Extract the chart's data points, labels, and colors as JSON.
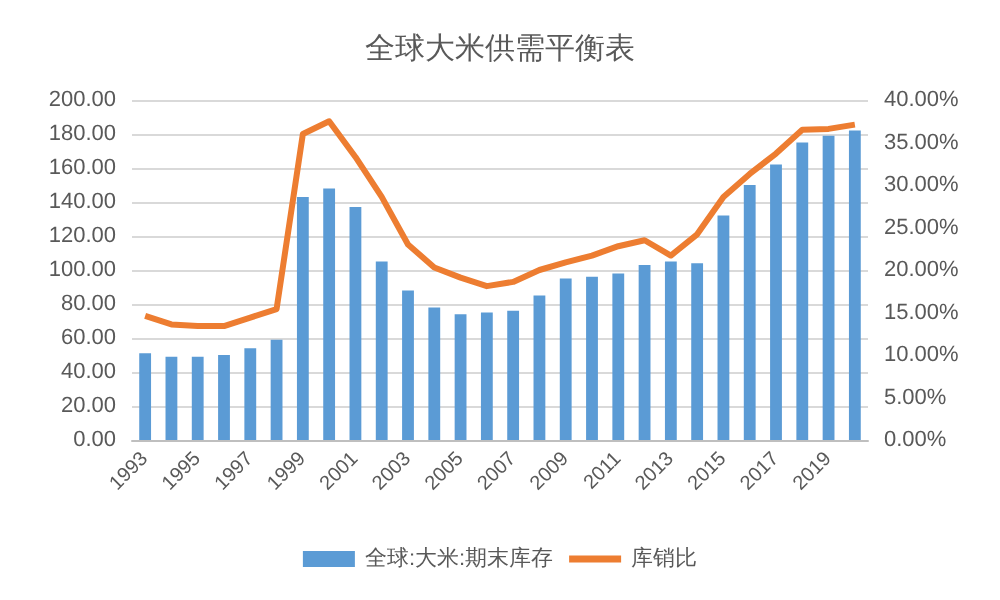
{
  "chart_data": {
    "type": "bar",
    "title": "全球大米供需平衡表",
    "categories": [
      "1993",
      null,
      "1995",
      null,
      "1997",
      null,
      "1999",
      null,
      "2001",
      null,
      "2003",
      null,
      "2005",
      null,
      "2007",
      null,
      "2009",
      null,
      "2011",
      null,
      "2013",
      null,
      "2015",
      null,
      "2017",
      null,
      "2019",
      null
    ],
    "series": [
      {
        "name": "全球:大米:期末库存",
        "color": "#5b9bd5",
        "values": [
          51,
          49,
          49,
          50,
          54,
          59,
          143,
          148,
          137,
          105,
          88,
          78,
          74,
          75,
          76,
          85,
          95,
          96,
          98,
          103,
          105,
          104,
          132,
          150,
          162,
          175,
          179,
          182
        ]
      },
      {
        "name": "库销比",
        "type": "line",
        "axis": "y2",
        "color": "#ed7d31",
        "values": [
          14.6,
          13.6,
          13.4,
          13.4,
          14.4,
          15.4,
          36,
          37.5,
          33.3,
          28.6,
          23,
          20.3,
          19.1,
          18.1,
          18.6,
          20,
          20.9,
          21.7,
          22.8,
          23.5,
          21.7,
          24.2,
          28.6,
          31.3,
          33.7,
          36.5,
          36.6,
          37.1
        ]
      }
    ],
    "ylim": [
      0,
      200
    ],
    "yticks": [
      {
        "value": 0,
        "label": "0.00"
      },
      {
        "value": 20,
        "label": "20.00"
      },
      {
        "value": 40,
        "label": "40.00"
      },
      {
        "value": 60,
        "label": "60.00"
      },
      {
        "value": 80,
        "label": "80.00"
      },
      {
        "value": 100,
        "label": "100.00"
      },
      {
        "value": 120,
        "label": "120.00"
      },
      {
        "value": 140,
        "label": "140.00"
      },
      {
        "value": 160,
        "label": "160.00"
      },
      {
        "value": 180,
        "label": "180.00"
      },
      {
        "value": 200,
        "label": "200.00"
      }
    ],
    "y2lim": [
      0,
      40
    ],
    "y2ticks": [
      {
        "value": 0,
        "label": "0.00%"
      },
      {
        "value": 5,
        "label": "5.00%"
      },
      {
        "value": 10,
        "label": "10.00%"
      },
      {
        "value": 15,
        "label": "15.00%"
      },
      {
        "value": 20,
        "label": "20.00%"
      },
      {
        "value": 25,
        "label": "25.00%"
      },
      {
        "value": 30,
        "label": "30.00%"
      },
      {
        "value": 35,
        "label": "35.00%"
      },
      {
        "value": 40,
        "label": "40.00%"
      }
    ],
    "grid": "y",
    "legend": "bottom",
    "marker": "none",
    "line_style": "solid"
  }
}
